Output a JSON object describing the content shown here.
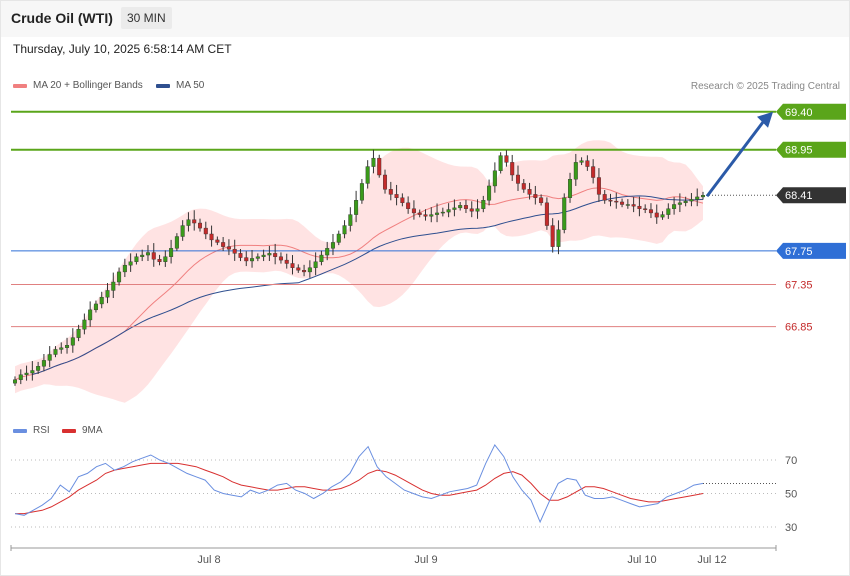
{
  "header": {
    "title": "Crude Oil (WTI)",
    "timeframe": "30 MIN",
    "datetime": "Thursday, July 10, 2025 6:58:14 AM CET"
  },
  "legend": {
    "ma20_label": "MA 20 + Bollinger Bands",
    "ma50_label": "MA 50",
    "credit": "Research © 2025 Trading Central"
  },
  "rsi_legend": {
    "rsi_label": "RSI",
    "ma9_label": "9MA"
  },
  "colors": {
    "bull": "#3a9a1a",
    "bear": "#c42b2b",
    "resistance": "#5aa51a",
    "support_blue": "#2f6fd6",
    "support_red": "#e08080",
    "current": "#333333",
    "arrow": "#2b5aa8",
    "ma20": "#f08080",
    "ma50": "#2f4f8f",
    "band_fill": "#ffe0e0",
    "rsi": "#6a8fe0",
    "rsi_ma": "#d83030"
  },
  "chart_data": {
    "type": "candlestick",
    "title": "Crude Oil (WTI)",
    "interval": "30 MIN",
    "y_ticks": [
      "69.40",
      "68.95",
      "68.41",
      "67.75",
      "67.35",
      "66.85"
    ],
    "x_ticks": [
      "Jul 8",
      "Jul 9",
      "Jul 10",
      "Jul 12"
    ],
    "levels": [
      {
        "label": "69.40",
        "value": 69.4,
        "kind": "resistance"
      },
      {
        "label": "68.95",
        "value": 68.95,
        "kind": "resistance"
      },
      {
        "label": "68.41",
        "value": 68.41,
        "kind": "current"
      },
      {
        "label": "67.75",
        "value": 67.75,
        "kind": "pivot"
      },
      {
        "label": "67.35",
        "value": 67.35,
        "kind": "support"
      },
      {
        "label": "66.85",
        "value": 66.85,
        "kind": "support"
      }
    ],
    "target_arrow": {
      "from": 68.41,
      "to": 69.4
    },
    "closes": [
      66.22,
      66.28,
      66.3,
      66.33,
      66.38,
      66.45,
      66.52,
      66.58,
      66.6,
      66.63,
      66.72,
      66.82,
      66.93,
      67.05,
      67.12,
      67.2,
      67.28,
      67.38,
      67.5,
      67.58,
      67.62,
      67.68,
      67.7,
      67.73,
      67.65,
      67.62,
      67.68,
      67.78,
      67.92,
      68.05,
      68.12,
      68.08,
      68.02,
      67.95,
      67.88,
      67.85,
      67.8,
      67.77,
      67.72,
      67.67,
      67.63,
      67.66,
      67.68,
      67.7,
      67.72,
      67.68,
      67.64,
      67.6,
      67.55,
      67.52,
      67.5,
      67.55,
      67.62,
      67.7,
      67.78,
      67.85,
      67.95,
      68.05,
      68.18,
      68.35,
      68.55,
      68.75,
      68.85,
      68.65,
      68.48,
      68.42,
      68.38,
      68.32,
      68.25,
      68.2,
      68.18,
      68.16,
      68.18,
      68.2,
      68.21,
      68.24,
      68.26,
      68.29,
      68.25,
      68.22,
      68.25,
      68.35,
      68.52,
      68.7,
      68.88,
      68.8,
      68.65,
      68.55,
      68.48,
      68.42,
      68.38,
      68.32,
      68.05,
      67.8,
      68.0,
      68.38,
      68.6,
      68.8,
      68.82,
      68.75,
      68.62,
      68.42,
      68.35,
      68.34,
      68.33,
      68.3,
      68.3,
      68.28,
      68.25,
      68.24,
      68.2,
      68.15,
      68.18,
      68.25,
      68.3,
      68.32,
      68.34,
      68.36,
      68.39,
      68.41
    ],
    "rsi": {
      "levels": [
        70,
        50,
        30
      ],
      "rsi_values": [
        38,
        37,
        40,
        43,
        47,
        55,
        51,
        60,
        62,
        66,
        68,
        64,
        66,
        69,
        71,
        73,
        70,
        68,
        65,
        62,
        60,
        58,
        52,
        50,
        49,
        48,
        52,
        50,
        52,
        55,
        56,
        52,
        50,
        47,
        50,
        54,
        57,
        62,
        72,
        78,
        66,
        60,
        56,
        52,
        50,
        48,
        47,
        49,
        51,
        52,
        53,
        55,
        68,
        79,
        72,
        60,
        52,
        46,
        33,
        45,
        56,
        59,
        58,
        49,
        47,
        47,
        48,
        46,
        44,
        42,
        43,
        44,
        48,
        50,
        52,
        55,
        56
      ],
      "ma_values": [
        38,
        38,
        39,
        40,
        42,
        45,
        48,
        52,
        55,
        58,
        62,
        64,
        65,
        66,
        67,
        68,
        68,
        68,
        68,
        67,
        66,
        64,
        62,
        60,
        57,
        55,
        54,
        53,
        52,
        52,
        53,
        54,
        54,
        53,
        52,
        52,
        53,
        55,
        58,
        62,
        64,
        63,
        61,
        58,
        55,
        52,
        50,
        49,
        49,
        50,
        51,
        52,
        55,
        59,
        62,
        63,
        61,
        56,
        50,
        46,
        46,
        48,
        51,
        54,
        54,
        53,
        51,
        49,
        47,
        46,
        45,
        45,
        46,
        47,
        48,
        49,
        50
      ]
    }
  }
}
